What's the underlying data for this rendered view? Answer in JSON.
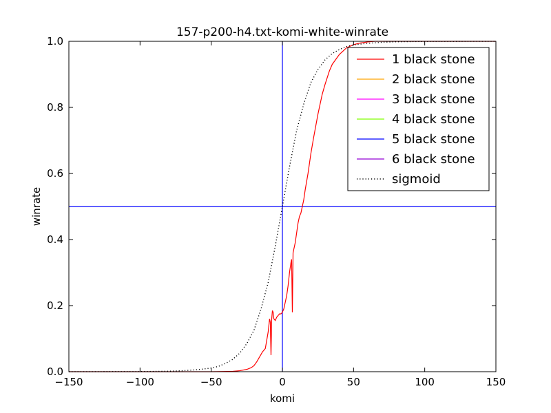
{
  "chart_data": {
    "type": "line",
    "title": "157-p200-h4.txt-komi-white-winrate",
    "xlabel": "komi",
    "ylabel": "winrate",
    "xlim": [
      -150,
      150
    ],
    "ylim": [
      0.0,
      1.0
    ],
    "xticks": [
      -150,
      -100,
      -50,
      0,
      50,
      100,
      150
    ],
    "xtick_labels": [
      "−150",
      "−100",
      "−50",
      "0",
      "50",
      "100",
      "150"
    ],
    "yticks": [
      0.0,
      0.2,
      0.4,
      0.6,
      0.8,
      1.0
    ],
    "ytick_labels": [
      "0.0",
      "0.2",
      "0.4",
      "0.6",
      "0.8",
      "1.0"
    ],
    "grid": false,
    "legend_position": "top-right",
    "reference_lines": [
      {
        "orientation": "vertical",
        "value": 0,
        "color": "#0000ff"
      },
      {
        "orientation": "horizontal",
        "value": 0.5,
        "color": "#0000ff"
      }
    ],
    "series": [
      {
        "name": "1 black stone",
        "color": "#ff0000",
        "style": "solid",
        "x": [
          -150,
          -50,
          -35,
          -30,
          -25,
          -22,
          -20,
          -18,
          -16,
          -14,
          -12,
          -10,
          -9,
          -8.5,
          -8,
          -7.5,
          -7,
          -6.5,
          -6,
          -5,
          -4,
          -3,
          -2,
          -1,
          0,
          1,
          2,
          3,
          4,
          5,
          6,
          6.5,
          7,
          7.5,
          8,
          8.5,
          9,
          10,
          11,
          12,
          13,
          14,
          15,
          16,
          18,
          20,
          22,
          25,
          28,
          30,
          33,
          35,
          40,
          45,
          50,
          55,
          60,
          65,
          70,
          150
        ],
        "y": [
          0.0,
          0.0,
          0.001,
          0.003,
          0.007,
          0.012,
          0.018,
          0.03,
          0.045,
          0.06,
          0.07,
          0.12,
          0.16,
          0.15,
          0.05,
          0.16,
          0.185,
          0.18,
          0.16,
          0.155,
          0.165,
          0.17,
          0.175,
          0.175,
          0.18,
          0.19,
          0.21,
          0.23,
          0.26,
          0.3,
          0.33,
          0.34,
          0.18,
          0.36,
          0.37,
          0.38,
          0.39,
          0.42,
          0.45,
          0.47,
          0.48,
          0.5,
          0.52,
          0.55,
          0.6,
          0.66,
          0.71,
          0.78,
          0.84,
          0.87,
          0.91,
          0.93,
          0.96,
          0.98,
          0.99,
          0.995,
          0.998,
          1.0,
          1.0,
          1.0
        ]
      },
      {
        "name": "2 black stone",
        "color": "#ffa500",
        "style": "solid",
        "x": [],
        "y": []
      },
      {
        "name": "3 black stone",
        "color": "#ff00ff",
        "style": "solid",
        "x": [],
        "y": []
      },
      {
        "name": "4 black stone",
        "color": "#7fff00",
        "style": "solid",
        "x": [],
        "y": []
      },
      {
        "name": "5 black stone",
        "color": "#0000ff",
        "style": "solid",
        "x": [],
        "y": []
      },
      {
        "name": "6 black stone",
        "color": "#9400d3",
        "style": "solid",
        "x": [],
        "y": []
      },
      {
        "name": "sigmoid",
        "color": "#000000",
        "style": "dotted",
        "x": [
          -150,
          -100,
          -80,
          -70,
          -60,
          -50,
          -45,
          -40,
          -35,
          -30,
          -25,
          -20,
          -15,
          -10,
          -5,
          0,
          5,
          10,
          15,
          20,
          25,
          30,
          35,
          40,
          45,
          50,
          60,
          70,
          80,
          100,
          150
        ],
        "y": [
          0.0,
          0.0005,
          0.0015,
          0.003,
          0.006,
          0.011,
          0.016,
          0.025,
          0.037,
          0.056,
          0.085,
          0.125,
          0.19,
          0.27,
          0.38,
          0.5,
          0.62,
          0.73,
          0.81,
          0.875,
          0.915,
          0.944,
          0.963,
          0.975,
          0.984,
          0.989,
          0.994,
          0.997,
          0.9985,
          0.9995,
          1.0
        ]
      }
    ]
  }
}
